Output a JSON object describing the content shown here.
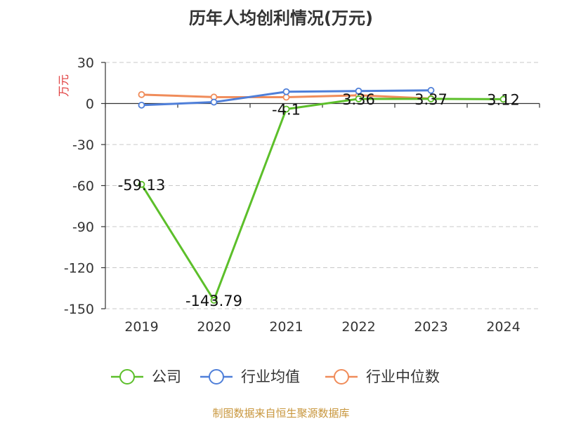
{
  "chart_data": {
    "type": "line",
    "title": "历年人均创利情况(万元)",
    "ylabel": "万元",
    "categories": [
      "2019",
      "2020",
      "2021",
      "2022",
      "2023",
      "2024"
    ],
    "ylim": [
      -150,
      30
    ],
    "yticks": [
      30,
      0,
      -30,
      -60,
      -90,
      -120,
      -150
    ],
    "grid": true,
    "legend_position": "bottom",
    "series": [
      {
        "name": "公司",
        "color": "#5cbf2a",
        "values": [
          -59.13,
          -143.79,
          -4.1,
          3.36,
          3.37,
          3.12
        ],
        "labels": [
          "-59.13",
          "-143.79",
          "-4.1",
          "3.36",
          "3.37",
          "3.12"
        ]
      },
      {
        "name": "行业均值",
        "color": "#4f7fd9",
        "values": [
          -1.2,
          1.0,
          8.6,
          9.1,
          9.6,
          null
        ]
      },
      {
        "name": "行业中位数",
        "color": "#f08c5a",
        "values": [
          6.5,
          4.7,
          4.6,
          6.0,
          3.6,
          null
        ]
      }
    ],
    "source": "制图数据来自恒生聚源数据库"
  }
}
